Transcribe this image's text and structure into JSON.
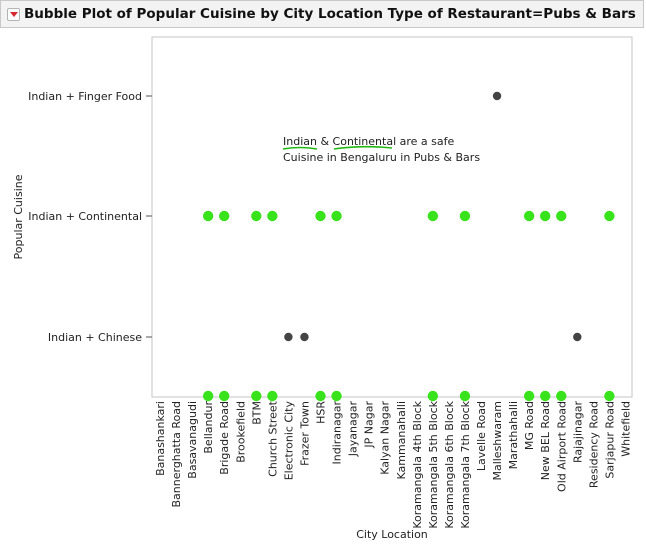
{
  "header": {
    "title": "Bubble Plot of Popular Cuisine by City Location Type of Restaurant=Pubs & Bars"
  },
  "chart_data": {
    "type": "scatter",
    "title": "Bubble Plot of Popular Cuisine by City Location Type of Restaurant=Pubs & Bars",
    "xlabel": "City Location",
    "ylabel": "Popular Cuisine",
    "categories": [
      "Banashankari",
      "Bannerghatta Road",
      "Basavanagudi",
      "Bellandur",
      "Brigade Road",
      "Brookefield",
      "BTM",
      "Church Street",
      "Electronic City",
      "Frazer Town",
      "HSR",
      "Indiranagar",
      "Jayanagar",
      "JP Nagar",
      "Kalyan Nagar",
      "Kammanahalli",
      "Koramangala 4th Block",
      "Koramangala 5th Block",
      "Koramangala 6th Block",
      "Koramangala 7th Block",
      "Lavelle Road",
      "Malleshwaram",
      "Marathahalli",
      "MG Road",
      "New BEL Road",
      "Old Airport Road",
      "Rajajinagar",
      "Residency Road",
      "Sarjapur Road",
      "Whitefield"
    ],
    "y_categories": [
      "Indian + Chinese",
      "Indian + Continental",
      "Indian + Finger Food"
    ],
    "points": [
      {
        "x": "Bellandur",
        "y": "Indian + Continental",
        "color": "green"
      },
      {
        "x": "Brigade Road",
        "y": "Indian + Continental",
        "color": "green"
      },
      {
        "x": "BTM",
        "y": "Indian + Continental",
        "color": "green"
      },
      {
        "x": "Church Street",
        "y": "Indian + Continental",
        "color": "green"
      },
      {
        "x": "HSR",
        "y": "Indian + Continental",
        "color": "green"
      },
      {
        "x": "Indiranagar",
        "y": "Indian + Continental",
        "color": "green"
      },
      {
        "x": "Koramangala 5th Block",
        "y": "Indian + Continental",
        "color": "green"
      },
      {
        "x": "Koramangala 7th Block",
        "y": "Indian + Continental",
        "color": "green"
      },
      {
        "x": "MG Road",
        "y": "Indian + Continental",
        "color": "green"
      },
      {
        "x": "New BEL Road",
        "y": "Indian + Continental",
        "color": "green"
      },
      {
        "x": "Old Airport Road",
        "y": "Indian + Continental",
        "color": "green"
      },
      {
        "x": "Sarjapur Road",
        "y": "Indian + Continental",
        "color": "green"
      },
      {
        "x": "Malleshwaram",
        "y": "Indian + Finger Food",
        "color": "gray"
      },
      {
        "x": "Electronic City",
        "y": "Indian + Chinese",
        "color": "gray"
      },
      {
        "x": "Frazer Town",
        "y": "Indian + Chinese",
        "color": "gray"
      },
      {
        "x": "Rajajinagar",
        "y": "Indian + Chinese",
        "color": "gray"
      }
    ],
    "axis_markers": [
      "Bellandur",
      "Brigade Road",
      "BTM",
      "Church Street",
      "HSR",
      "Indiranagar",
      "Koramangala 5th Block",
      "Koramangala 7th Block",
      "MG Road",
      "New BEL Road",
      "Old Airport Road",
      "Sarjapur Road"
    ],
    "annotation": {
      "line1": [
        "Indian",
        " & ",
        "Continental",
        " are a safe"
      ],
      "line2": "Cuisine in Bengaluru in Pubs & Bars"
    },
    "grid": false,
    "colors": {
      "green": "#39e31b",
      "gray": "#444444",
      "underline": "#22b814"
    }
  }
}
